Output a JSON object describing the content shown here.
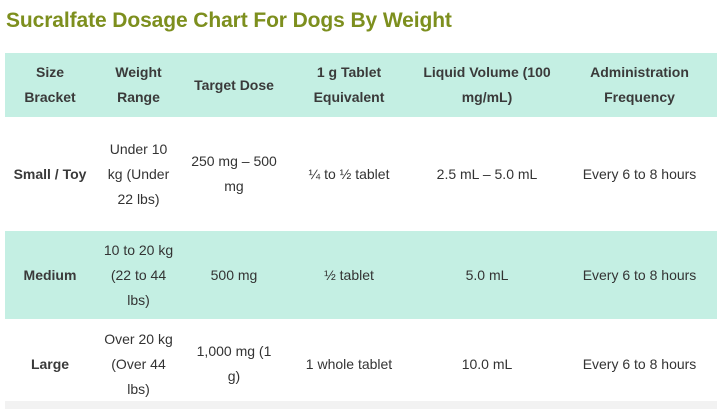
{
  "title": "Sucralfate Dosage Chart For Dogs By Weight",
  "headers": {
    "size_bracket": "Size Bracket",
    "weight_range": "Weight Range",
    "target_dose": "Target Dose",
    "tablet_equivalent": "1 g Tablet Equivalent",
    "liquid_volume": "Liquid Volume (100 mg/mL)",
    "frequency": "Administration Frequency"
  },
  "rows": [
    {
      "size_bracket": "Small / Toy",
      "weight_range": "Under 10 kg (Under 22 lbs)",
      "target_dose": "250 mg – 500 mg",
      "tablet_equivalent": "¼ to ½ tablet",
      "liquid_volume": "2.5 mL – 5.0 mL",
      "frequency": "Every 6 to 8 hours"
    },
    {
      "size_bracket": "Medium",
      "weight_range": "10 to 20 kg (22 to 44 lbs)",
      "target_dose": "500 mg",
      "tablet_equivalent": "½ tablet",
      "liquid_volume": "5.0 mL",
      "frequency": "Every 6 to 8 hours"
    },
    {
      "size_bracket": "Large",
      "weight_range": "Over 20 kg (Over 44 lbs)",
      "target_dose": "1,000 mg (1 g)",
      "tablet_equivalent": "1 whole tablet",
      "liquid_volume": "10.0 mL",
      "frequency": "Every 6 to 8 hours"
    }
  ]
}
